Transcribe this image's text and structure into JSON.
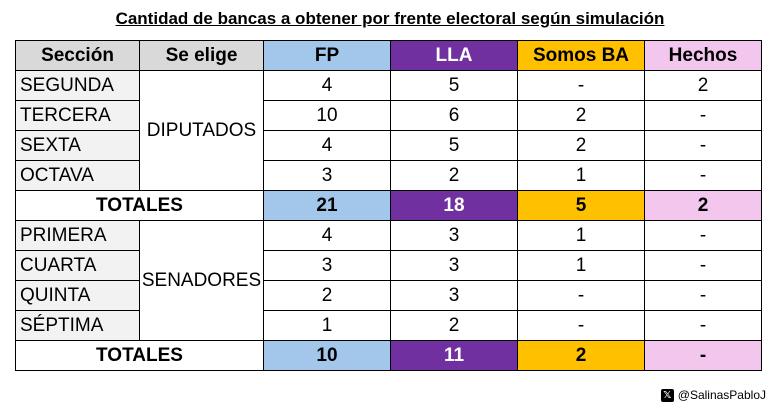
{
  "title": "Cantidad de bancas a obtener por frente electoral según simulación",
  "credit": "@SalinasPabloJ",
  "chart_data": {
    "type": "table",
    "columns": [
      "Sección",
      "Se elige",
      "FP",
      "LLA",
      "Somos BA",
      "Hechos"
    ],
    "groups": [
      {
        "label": "DIPUTADOS",
        "rows": [
          {
            "seccion": "SEGUNDA",
            "values": [
              "4",
              "5",
              "-",
              "2"
            ]
          },
          {
            "seccion": "TERCERA",
            "values": [
              "10",
              "6",
              "2",
              "-"
            ]
          },
          {
            "seccion": "SEXTA",
            "values": [
              "4",
              "5",
              "2",
              "-"
            ]
          },
          {
            "seccion": "OCTAVA",
            "values": [
              "3",
              "2",
              "1",
              "-"
            ]
          }
        ],
        "totals_label": "TOTALES",
        "totals": [
          "21",
          "18",
          "5",
          "2"
        ]
      },
      {
        "label": "SENADORES",
        "rows": [
          {
            "seccion": "PRIMERA",
            "values": [
              "4",
              "3",
              "1",
              "-"
            ]
          },
          {
            "seccion": "CUARTA",
            "values": [
              "3",
              "3",
              "1",
              "-"
            ]
          },
          {
            "seccion": "QUINTA",
            "values": [
              "2",
              "3",
              "-",
              "-"
            ]
          },
          {
            "seccion": "SÉPTIMA",
            "values": [
              "1",
              "2",
              "-",
              "-"
            ]
          }
        ],
        "totals_label": "TOTALES",
        "totals": [
          "10",
          "11",
          "2",
          "-"
        ]
      }
    ],
    "colors": {
      "FP": "#a3c7ea",
      "LLA": "#7030a0",
      "Somos BA": "#ffc000",
      "Hechos": "#f3c6ee"
    }
  }
}
